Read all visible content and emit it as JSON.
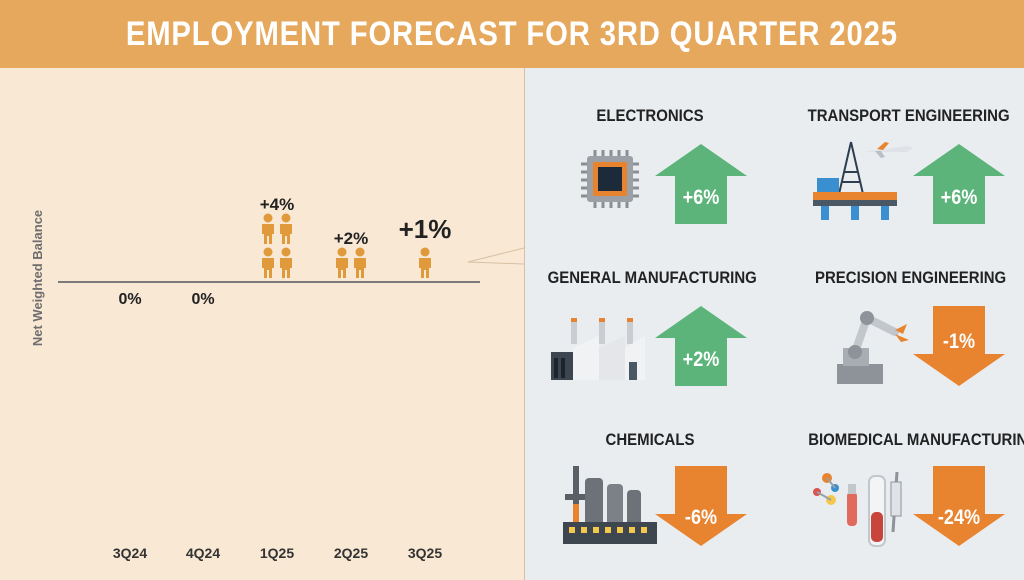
{
  "header": {
    "title": "EMPLOYMENT FORECAST FOR 3RD QUARTER 2025"
  },
  "chart_data": {
    "type": "pictograph-bar",
    "ylabel": "Net Weighted Balance",
    "categories": [
      "3Q24",
      "4Q24",
      "1Q25",
      "2Q25",
      "3Q25"
    ],
    "values": [
      0,
      0,
      4,
      2,
      1
    ],
    "value_labels": [
      "0%",
      "0%",
      "+4%",
      "+2%",
      "+1%"
    ],
    "highlight_category": "3Q25",
    "icon": "person-icon",
    "icon_color": "#e09a3c"
  },
  "sectors": [
    {
      "name": "ELECTRONICS",
      "value": 6,
      "label": "+6%",
      "direction": "up",
      "color": "#5cb47a",
      "icon": "microchip-icon"
    },
    {
      "name": "TRANSPORT ENGINEERING",
      "value": 6,
      "label": "+6%",
      "direction": "up",
      "color": "#5cb47a",
      "icon": "oil-rig-airplane-icon"
    },
    {
      "name": "GENERAL MANUFACTURING",
      "value": 2,
      "label": "+2%",
      "direction": "up",
      "color": "#5cb47a",
      "icon": "factory-icon"
    },
    {
      "name": "PRECISION ENGINEERING",
      "value": -1,
      "label": "-1%",
      "direction": "down",
      "color": "#e8832f",
      "icon": "robot-arm-icon"
    },
    {
      "name": "CHEMICALS",
      "value": -6,
      "label": "-6%",
      "direction": "down",
      "color": "#e8832f",
      "icon": "chemical-plant-icon"
    },
    {
      "name": "BIOMEDICAL MANUFACTURING",
      "value": -24,
      "label": "-24%",
      "direction": "down",
      "color": "#e8832f",
      "icon": "lab-equipment-icon"
    }
  ]
}
